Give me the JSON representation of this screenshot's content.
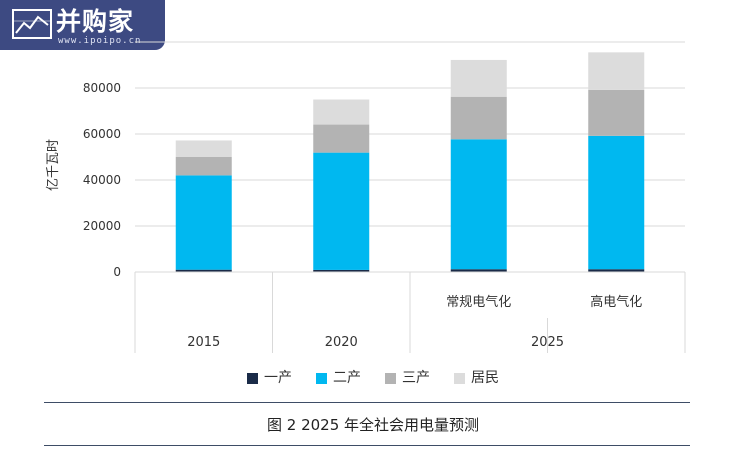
{
  "logo": {
    "name": "并购家",
    "url": "www.ipoipo.cn"
  },
  "figure_caption": "图 2 2025 年全社会用电量预测",
  "colors": {
    "一产": "#1a2b48",
    "二产": "#00b8f0",
    "三产": "#b3b3b3",
    "居民": "#dcdcdc",
    "grid": "#d9d9d9"
  },
  "chart_data": {
    "type": "bar",
    "stacked": true,
    "ylabel": "亿千瓦时",
    "xlabel": "",
    "ylim": [
      0,
      100000
    ],
    "yticks": [
      0,
      20000,
      40000,
      60000,
      80000
    ],
    "grid": true,
    "legend_position": "bottom",
    "categories": [
      "2015",
      "2020",
      "常规电气化",
      "高电气化"
    ],
    "category_groups": [
      {
        "label": "2015",
        "members": [
          0
        ]
      },
      {
        "label": "2020",
        "members": [
          1
        ]
      },
      {
        "label": "2025",
        "members": [
          2,
          3
        ]
      }
    ],
    "series": [
      {
        "name": "一产",
        "values": [
          1000,
          900,
          1200,
          1200
        ]
      },
      {
        "name": "二产",
        "values": [
          41000,
          51000,
          56500,
          58000
        ]
      },
      {
        "name": "三产",
        "values": [
          8000,
          12200,
          18500,
          20000
        ]
      },
      {
        "name": "居民",
        "values": [
          7200,
          10900,
          16000,
          16300
        ]
      }
    ]
  }
}
